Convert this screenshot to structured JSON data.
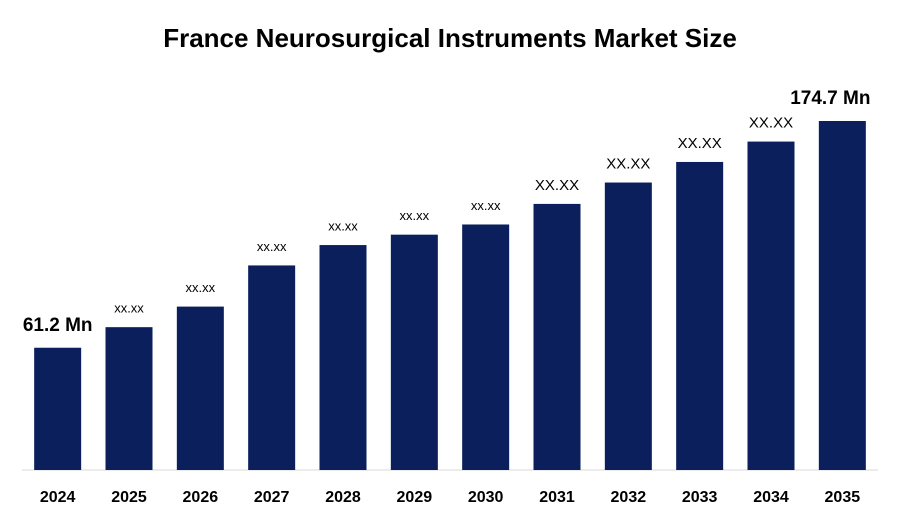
{
  "chart_data": {
    "type": "bar",
    "title": "France Neurosurgical Instruments Market Size",
    "categories": [
      "2024",
      "2025",
      "2026",
      "2027",
      "2028",
      "2029",
      "2030",
      "2031",
      "2032",
      "2033",
      "2034",
      "2035"
    ],
    "values": [
      61.2,
      71.5,
      81.8,
      102.4,
      112.6,
      117.8,
      122.9,
      133.2,
      143.9,
      154.2,
      164.4,
      174.7
    ],
    "value_labels": [
      "61.2 Mn",
      "xx.xx",
      "xx.xx",
      "xx.xx",
      "xx.xx",
      "xx.xx",
      "xx.xx",
      "XX.XX",
      "XX.XX",
      "XX.XX",
      "XX.XX",
      "174.7 Mn"
    ],
    "color": "#0a1f5c"
  }
}
